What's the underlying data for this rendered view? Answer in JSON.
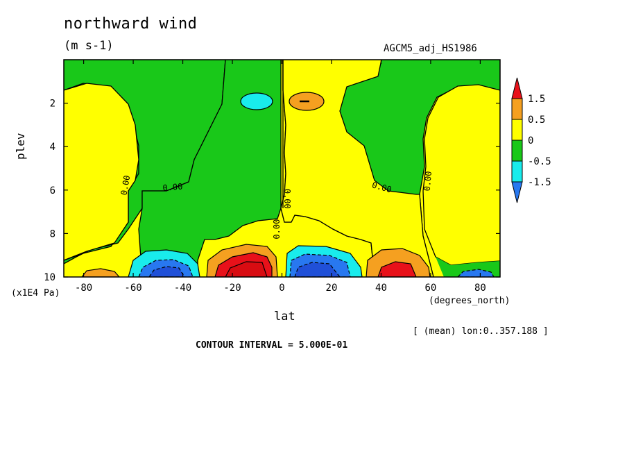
{
  "header": {
    "title": "northward wind",
    "units": "(m s-1)",
    "dataset": "AGCM5_adj_HS1986",
    "mean_label": "[ (mean) lon:0..357.188 ]",
    "contour_interval": "CONTOUR INTERVAL = 5.000E-01"
  },
  "chart_data": {
    "type": "heatmap",
    "xlabel": "lat",
    "ylabel": "plev",
    "x_units": "(degrees_north)",
    "y_units": "(x1E4 Pa)",
    "xlim": [
      -88,
      88
    ],
    "ylim": [
      10,
      0
    ],
    "x_ticks": [
      -80,
      -60,
      -40,
      -20,
      0,
      20,
      40,
      60,
      80
    ],
    "y_ticks": [
      2,
      4,
      6,
      8,
      10
    ],
    "colorbar": {
      "levels": [
        "1.5",
        "0.5",
        "0",
        "-0.5",
        "-1.5"
      ],
      "colors": [
        "#e8111a",
        "#f5a020",
        "#ffff00",
        "#19c819",
        "#19ecec",
        "#2878f0"
      ]
    },
    "contour_labels": [
      "0.00",
      "0.00",
      "0.00",
      "0.00",
      "0.00",
      "0.00",
      "0.00"
    ],
    "features": [
      {
        "name": "positive max",
        "lat": -12,
        "plev": 9.8,
        "value": 1.5
      },
      {
        "name": "negative min",
        "lat": -47,
        "plev": 9.8,
        "value": -1.5
      },
      {
        "name": "negative min",
        "lat": 12,
        "plev": 9.8,
        "value": -1.5
      },
      {
        "name": "positive max",
        "lat": 45,
        "plev": 9.8,
        "value": 1.5
      },
      {
        "name": "upper positive",
        "lat": 10,
        "plev": 2.0,
        "value": 0.5
      },
      {
        "name": "upper negative",
        "lat": -10,
        "plev": 2.0,
        "value": -0.5
      }
    ]
  }
}
